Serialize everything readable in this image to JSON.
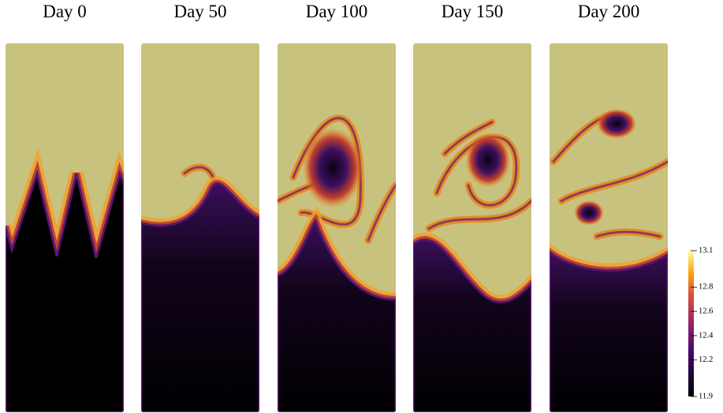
{
  "panels": [
    {
      "title": "Day 0"
    },
    {
      "title": "Day 50"
    },
    {
      "title": "Day 100"
    },
    {
      "title": "Day 150"
    },
    {
      "title": "Day 200"
    }
  ],
  "colorbar": {
    "lim": [
      11.9,
      13.1
    ],
    "ticks": [
      11.9,
      12.2,
      12.4,
      12.6,
      12.8,
      13.1
    ]
  }
}
